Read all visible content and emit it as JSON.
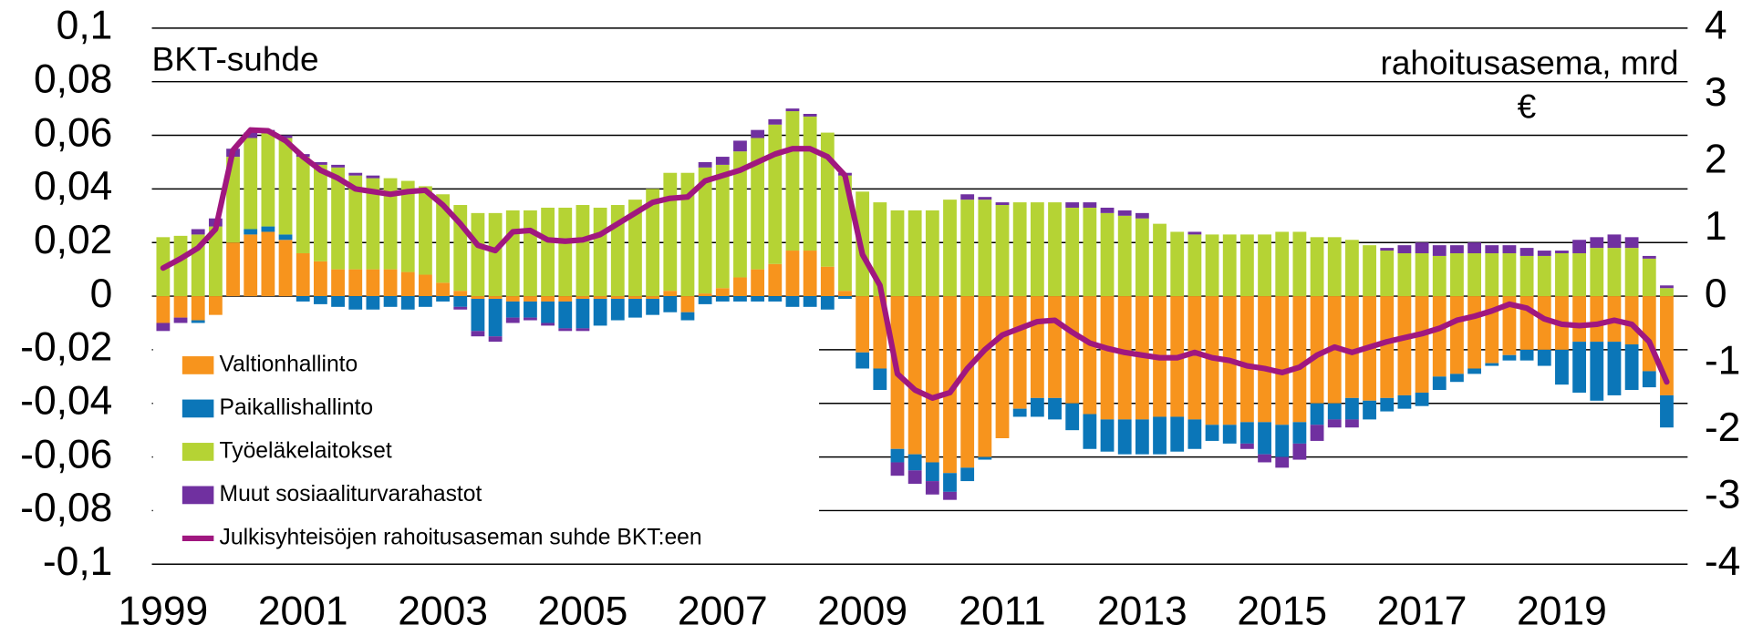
{
  "chart_data": {
    "type": "bar",
    "stacked": true,
    "y_label": "BKT-suhde",
    "y2_label": [
      "rahoitusasema, mrd",
      "€"
    ],
    "categories": [
      "1999",
      null,
      null,
      null,
      null,
      null,
      null,
      null,
      "2001",
      null,
      null,
      null,
      null,
      null,
      null,
      null,
      "2003",
      null,
      null,
      null,
      null,
      null,
      null,
      null,
      "2005",
      null,
      null,
      null,
      null,
      null,
      null,
      null,
      "2007",
      null,
      null,
      null,
      null,
      null,
      null,
      null,
      "2009",
      null,
      null,
      null,
      null,
      null,
      null,
      null,
      "2011",
      null,
      null,
      null,
      null,
      null,
      null,
      null,
      "2013",
      null,
      null,
      null,
      null,
      null,
      null,
      null,
      "2015",
      null,
      null,
      null,
      null,
      null,
      null,
      null,
      "2017",
      null,
      null,
      null,
      null,
      null,
      null,
      null,
      "2019",
      null,
      null,
      null,
      null,
      null,
      null
    ],
    "ylim": [
      -0.1,
      0.1
    ],
    "yticks": [
      {
        "value": 0.1,
        "label": "0,1"
      },
      {
        "value": 0.08,
        "label": "0,08"
      },
      {
        "value": 0.06,
        "label": "0,06"
      },
      {
        "value": 0.04,
        "label": "0,04"
      },
      {
        "value": 0.02,
        "label": "0,02"
      },
      0,
      {
        "value": -0.02,
        "label": "-0,02"
      },
      {
        "value": -0.04,
        "label": "-0,04"
      },
      {
        "value": -0.06,
        "label": "-0,06"
      },
      {
        "value": -0.08,
        "label": "-0,08"
      },
      {
        "value": -0.1,
        "label": "-0,1"
      }
    ],
    "y2lim": [
      -4,
      4
    ],
    "y2ticks": [
      4,
      3,
      2,
      1,
      0,
      -1,
      -2,
      -3,
      -4
    ],
    "grid": true,
    "series": [
      {
        "name": "Valtionhallinto",
        "color": "#f7941d",
        "values": [
          -0.01,
          -0.008,
          -0.009,
          -0.007,
          0.02,
          0.023,
          0.024,
          0.021,
          0.016,
          0.013,
          0.01,
          0.01,
          0.01,
          0.01,
          0.009,
          0.008,
          0.005,
          0.002,
          -0.001,
          -0.001,
          -0.002,
          -0.002,
          -0.002,
          -0.002,
          -0.001,
          -0.001,
          -0.001,
          -0.001,
          -0.001,
          0.002,
          -0.006,
          0.001,
          0.003,
          0.007,
          0.01,
          0.012,
          0.017,
          0.017,
          0.011,
          0.002,
          -0.021,
          -0.027,
          -0.057,
          -0.059,
          -0.062,
          -0.066,
          -0.064,
          -0.06,
          -0.053,
          -0.042,
          -0.038,
          -0.038,
          -0.04,
          -0.044,
          -0.046,
          -0.046,
          -0.046,
          -0.045,
          -0.045,
          -0.046,
          -0.048,
          -0.048,
          -0.047,
          -0.047,
          -0.048,
          -0.047,
          -0.04,
          -0.04,
          -0.038,
          -0.039,
          -0.038,
          -0.037,
          -0.036,
          -0.03,
          -0.029,
          -0.027,
          -0.025,
          -0.022,
          -0.02,
          -0.02,
          -0.02,
          -0.017,
          -0.017,
          -0.017,
          -0.018,
          -0.028,
          -0.037
        ]
      },
      {
        "name": "Paikallishallinto",
        "color": "#0b76b8",
        "values": [
          0,
          0,
          -0.001,
          0,
          0,
          0.002,
          0.002,
          0.002,
          -0.002,
          -0.003,
          -0.004,
          -0.005,
          -0.005,
          -0.004,
          -0.005,
          -0.004,
          -0.002,
          -0.004,
          -0.012,
          -0.014,
          -0.006,
          -0.006,
          -0.008,
          -0.01,
          -0.011,
          -0.01,
          -0.008,
          -0.007,
          -0.006,
          -0.006,
          -0.003,
          -0.003,
          -0.002,
          -0.002,
          -0.002,
          -0.002,
          -0.004,
          -0.004,
          -0.005,
          -0.001,
          -0.006,
          -0.008,
          -0.005,
          -0.006,
          -0.007,
          -0.007,
          -0.005,
          -0.001,
          0,
          -0.003,
          -0.007,
          -0.008,
          -0.01,
          -0.013,
          -0.012,
          -0.013,
          -0.013,
          -0.014,
          -0.013,
          -0.011,
          -0.006,
          -0.007,
          -0.008,
          -0.012,
          -0.012,
          -0.008,
          -0.008,
          -0.006,
          -0.008,
          -0.007,
          -0.005,
          -0.005,
          -0.005,
          -0.005,
          -0.003,
          -0.002,
          -0.001,
          -0.002,
          -0.004,
          -0.006,
          -0.013,
          -0.019,
          -0.022,
          -0.02,
          -0.017,
          -0.006,
          -0.012
        ]
      },
      {
        "name": "Työeläkelaitokset",
        "color": "#b5d334",
        "values": [
          0.022,
          0.0225,
          0.023,
          0.026,
          0.032,
          0.034,
          0.035,
          0.036,
          0.036,
          0.036,
          0.038,
          0.035,
          0.034,
          0.034,
          0.034,
          0.033,
          0.033,
          0.032,
          0.031,
          0.031,
          0.032,
          0.032,
          0.033,
          0.033,
          0.034,
          0.033,
          0.034,
          0.036,
          0.04,
          0.044,
          0.046,
          0.047,
          0.046,
          0.047,
          0.049,
          0.052,
          0.052,
          0.05,
          0.05,
          0.043,
          0.039,
          0.035,
          0.032,
          0.032,
          0.032,
          0.036,
          0.036,
          0.036,
          0.034,
          0.035,
          0.035,
          0.035,
          0.033,
          0.033,
          0.031,
          0.03,
          0.029,
          0.027,
          0.024,
          0.023,
          0.023,
          0.023,
          0.023,
          0.023,
          0.024,
          0.024,
          0.022,
          0.022,
          0.021,
          0.019,
          0.017,
          0.016,
          0.016,
          0.015,
          0.016,
          0.016,
          0.016,
          0.016,
          0.015,
          0.015,
          0.016,
          0.016,
          0.018,
          0.018,
          0.018,
          0.014,
          0.003
        ]
      },
      {
        "name": "Muut sosiaaliturvarahastot",
        "color": "#7030a0",
        "values": [
          -0.003,
          -0.002,
          0.002,
          0.003,
          0.003,
          0.002,
          0.001,
          0.001,
          0.001,
          0.001,
          0.001,
          0.001,
          0.001,
          0,
          0,
          0,
          0,
          -0.001,
          -0.002,
          -0.002,
          -0.002,
          -0.001,
          -0.001,
          -0.001,
          -0.001,
          0,
          0,
          0,
          0,
          0,
          0,
          0.002,
          0.003,
          0.004,
          0.003,
          0.002,
          0.001,
          0.001,
          0,
          0.001,
          0,
          0,
          -0.005,
          -0.005,
          -0.005,
          -0.003,
          0.002,
          0.001,
          0.001,
          0,
          0,
          0,
          0.002,
          0.002,
          0.002,
          0.002,
          0.002,
          0,
          0,
          0.001,
          0,
          0,
          -0.002,
          -0.003,
          -0.004,
          -0.006,
          -0.006,
          -0.003,
          -0.003,
          0,
          0.001,
          0.003,
          0.004,
          0.004,
          0.003,
          0.004,
          0.003,
          0.003,
          0.003,
          0.002,
          0.001,
          0.005,
          0.004,
          0.005,
          0.004,
          0.001,
          0.001
        ]
      },
      {
        "name": "Julkisyhteisöjen rahoitusaseman suhde BKT:een",
        "type": "line",
        "color": "#a0177f",
        "values": [
          0.0105,
          0.014,
          0.018,
          0.025,
          0.0545,
          0.062,
          0.0617,
          0.058,
          0.052,
          0.047,
          0.044,
          0.04,
          0.039,
          0.038,
          0.039,
          0.0395,
          0.034,
          0.027,
          0.019,
          0.017,
          0.024,
          0.0245,
          0.021,
          0.0205,
          0.021,
          0.023,
          0.027,
          0.031,
          0.035,
          0.0365,
          0.037,
          0.043,
          0.045,
          0.047,
          0.05,
          0.053,
          0.055,
          0.055,
          0.052,
          0.045,
          0.0155,
          0.004,
          -0.029,
          -0.035,
          -0.038,
          -0.036,
          -0.027,
          -0.02,
          -0.0145,
          -0.012,
          -0.0095,
          -0.009,
          -0.0135,
          -0.0175,
          -0.0195,
          -0.021,
          -0.022,
          -0.023,
          -0.023,
          -0.021,
          -0.023,
          -0.024,
          -0.026,
          -0.027,
          -0.0285,
          -0.0265,
          -0.022,
          -0.019,
          -0.021,
          -0.019,
          -0.017,
          -0.0155,
          -0.014,
          -0.012,
          -0.009,
          -0.0075,
          -0.0055,
          -0.003,
          -0.0045,
          -0.0085,
          -0.0105,
          -0.011,
          -0.0105,
          -0.009,
          -0.0105,
          -0.017,
          -0.032
        ]
      }
    ]
  }
}
